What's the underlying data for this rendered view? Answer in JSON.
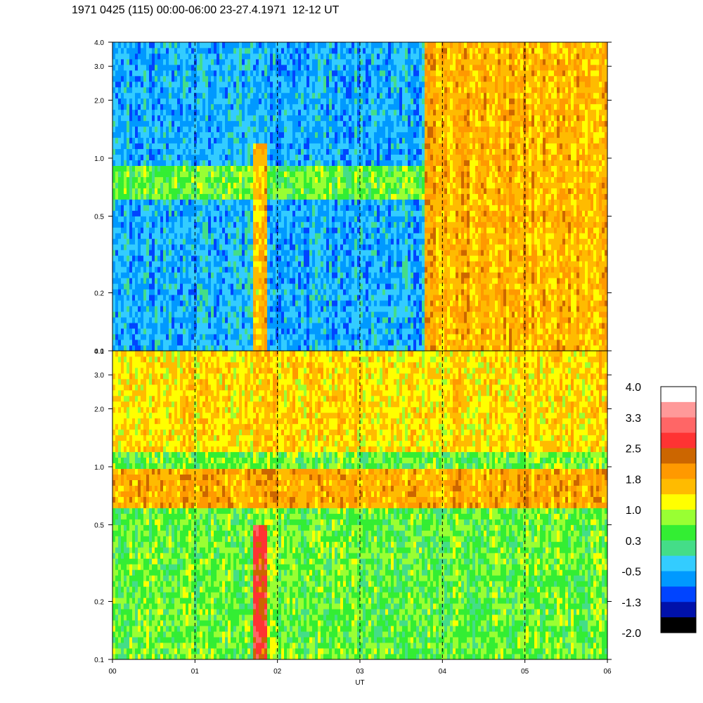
{
  "title": "1971 0425 (115) 00:00-06:00 23-27.4.1971  12-12 UT",
  "chart_data": {
    "type": "heatmap",
    "panels": [
      {
        "name": "top",
        "y_scale": "log",
        "ylim": [
          0.1,
          4.0
        ],
        "y_ticks": [
          "0.1",
          "0.2",
          "0.5",
          "1.0",
          "2.0",
          "3.0",
          "4.0"
        ],
        "background_level": -0.5,
        "features": [
          {
            "kind": "band",
            "x_range": [
              0.0,
              6.0
            ],
            "y_range": [
              0.6,
              0.9
            ],
            "level": 0.6
          },
          {
            "kind": "burst",
            "x_range": [
              1.72,
              1.86
            ],
            "y_range": [
              0.1,
              1.2
            ],
            "level": 1.6
          },
          {
            "kind": "activity",
            "x_range": [
              3.78,
              6.0
            ],
            "y_range": [
              0.1,
              4.0
            ],
            "level": 1.7
          }
        ]
      },
      {
        "name": "bottom",
        "y_scale": "log",
        "ylim": [
          0.1,
          4.0
        ],
        "y_ticks": [
          "0.1",
          "0.2",
          "0.5",
          "1.0",
          "2.0",
          "3.0",
          "4.0"
        ],
        "background_level": 0.6,
        "features": [
          {
            "kind": "band",
            "x_range": [
              0.0,
              6.0
            ],
            "y_range": [
              0.6,
              0.95
            ],
            "level": 1.8
          },
          {
            "kind": "region",
            "x_range": [
              0.0,
              6.0
            ],
            "y_range": [
              1.2,
              4.0
            ],
            "level": 1.4
          },
          {
            "kind": "burst",
            "x_range": [
              1.72,
              1.86
            ],
            "y_range": [
              0.1,
              0.5
            ],
            "level": 2.5
          }
        ]
      }
    ],
    "x_ticks": [
      "00",
      "01",
      "02",
      "03",
      "04",
      "05",
      "06"
    ],
    "xlim": [
      0,
      6
    ],
    "xlabel": "UT",
    "dashed_hours": [
      1,
      2,
      3,
      4,
      5
    ],
    "colorbar": {
      "labels": [
        "4.0",
        "3.3",
        "2.5",
        "1.8",
        "1.0",
        "0.3",
        "-0.5",
        "-1.3",
        "-2.0"
      ],
      "colors": [
        "#ffffff",
        "#ff9999",
        "#ff6666",
        "#ff3333",
        "#cc6600",
        "#ff9900",
        "#ffbb00",
        "#ffff00",
        "#99ff33",
        "#33ee33",
        "#44dd88",
        "#33ccff",
        "#0099ff",
        "#0044ff",
        "#0011aa",
        "#000000"
      ]
    }
  }
}
